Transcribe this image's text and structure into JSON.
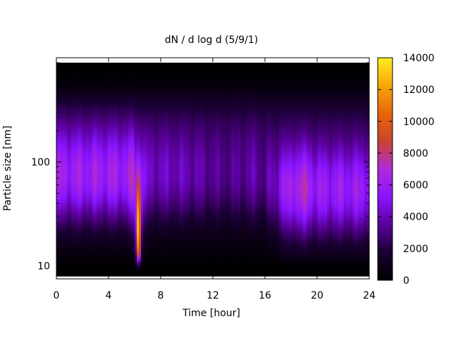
{
  "chart_data": {
    "type": "heatmap",
    "title": "dN / d log d (5/9/1)",
    "xlabel": "Time [hour]",
    "ylabel": "Particle size [nm]",
    "xlim": [
      0,
      24
    ],
    "x_ticks": [
      0,
      4,
      8,
      12,
      16,
      20,
      24
    ],
    "y_scale": "log",
    "ylim": [
      8,
      900
    ],
    "y_tick_labels": [
      {
        "value": 10,
        "label": "10"
      },
      {
        "value": 100,
        "label": "100"
      }
    ],
    "colorbar": {
      "range": [
        0,
        14000
      ],
      "ticks": [
        0,
        2000,
        4000,
        6000,
        8000,
        10000,
        12000,
        14000
      ],
      "palette": [
        "#000000",
        "#1a0033",
        "#5a009a",
        "#8a14ff",
        "#b02bd8",
        "#c8442e",
        "#e8650a",
        "#f9a60a",
        "#ffee22"
      ]
    },
    "features": [
      {
        "description_value": "mode near 70 nm",
        "time_range": [
          0,
          5.8
        ],
        "diameter_nm": 75,
        "level": 6800
      },
      {
        "description_value": "burst at ~6.3 h",
        "time": 6.3,
        "diameter_range_nm": [
          9,
          100
        ],
        "peak_level": 11000
      },
      {
        "description_value": "mode near 55 nm",
        "time_range": [
          17,
          24
        ],
        "diameter_nm": 55,
        "level": 6500
      }
    ]
  }
}
